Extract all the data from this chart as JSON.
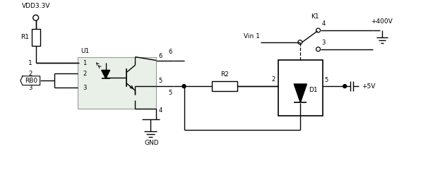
{
  "bg_color": "#ffffff",
  "line_color": "#000000",
  "figsize": [
    6.23,
    2.72
  ],
  "dpi": 100,
  "labels": {
    "VDD33V": "VDD3.3V",
    "R1": "R1",
    "U1": "U1",
    "RB0": "RB0",
    "GND": "GND",
    "R2": "R2",
    "K1": "K1",
    "Vin1": "Vin 1",
    "plus400V": "+400V",
    "plus5V": "+5V",
    "D1": "D1",
    "n1": "1",
    "n2": "2",
    "n3": "3",
    "n4": "4",
    "n5": "5",
    "n6": "6"
  }
}
